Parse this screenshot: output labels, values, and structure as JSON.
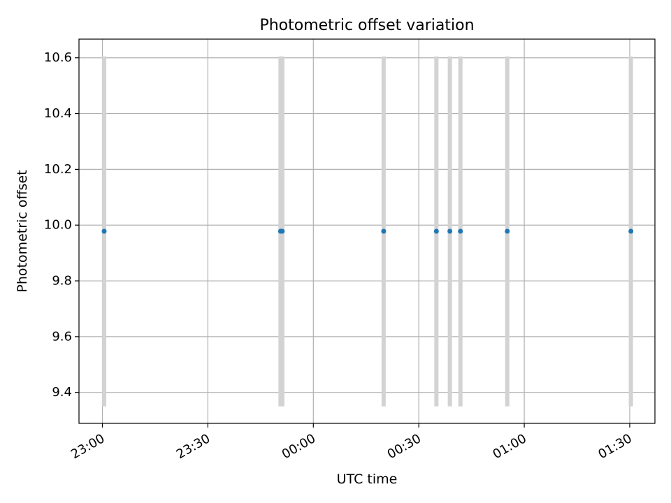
{
  "chart_data": {
    "type": "scatter",
    "title": "Photometric offset variation",
    "xlabel": "UTC time",
    "ylabel": "Photometric offset",
    "x_axis_kind": "time",
    "xlim": [
      "22:53:20",
      "01:37:10"
    ],
    "ylim": [
      9.289,
      10.667
    ],
    "x_ticks": [
      "23:00",
      "23:30",
      "00:00",
      "00:30",
      "01:00",
      "01:30"
    ],
    "y_ticks": [
      9.4,
      9.6,
      9.8,
      10.0,
      10.2,
      10.4,
      10.6
    ],
    "grid": true,
    "error_bar_color": "#d3d3d3",
    "marker_color": "#1f77b4",
    "points": [
      {
        "time": "23:00:30",
        "y": 9.978,
        "ymin": 9.35,
        "ymax": 10.605
      },
      {
        "time": "23:50:40",
        "y": 9.978,
        "ymin": 9.35,
        "ymax": 10.605
      },
      {
        "time": "23:51:10",
        "y": 9.978,
        "ymin": 9.35,
        "ymax": 10.605
      },
      {
        "time": "00:20:00",
        "y": 9.978,
        "ymin": 9.35,
        "ymax": 10.605
      },
      {
        "time": "00:35:00",
        "y": 9.978,
        "ymin": 9.35,
        "ymax": 10.605
      },
      {
        "time": "00:38:50",
        "y": 9.978,
        "ymin": 9.35,
        "ymax": 10.605
      },
      {
        "time": "00:41:50",
        "y": 9.978,
        "ymin": 9.35,
        "ymax": 10.605
      },
      {
        "time": "00:55:10",
        "y": 9.978,
        "ymin": 9.35,
        "ymax": 10.605
      },
      {
        "time": "01:30:20",
        "y": 9.978,
        "ymin": 9.35,
        "ymax": 10.605
      }
    ]
  }
}
